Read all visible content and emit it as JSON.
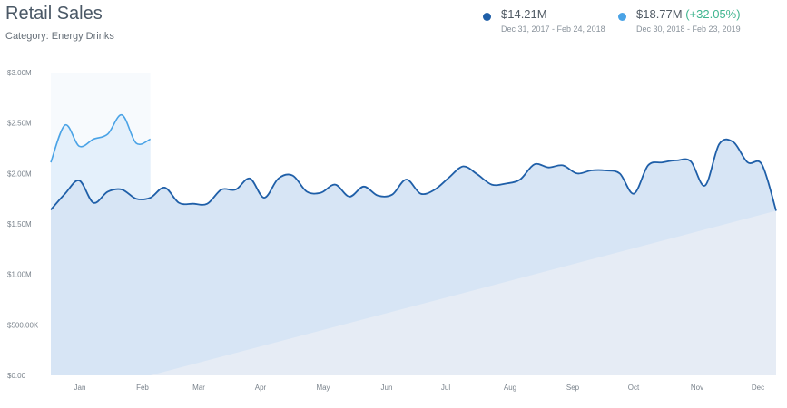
{
  "header": {
    "title": "Retail Sales",
    "subtitle": "Category: Energy Drinks"
  },
  "legend": [
    {
      "value": "$14.21M",
      "change": "",
      "range": "Dec 31, 2017 - Feb 24, 2018",
      "color": "#1f5fa8"
    },
    {
      "value": "$18.77M",
      "change": "(+32.05%)",
      "range": "Dec 30, 2018 - Feb 23, 2019",
      "color": "#4aa3e6"
    }
  ],
  "colors": {
    "current": "#1f5fa8",
    "highlight": "#4aa3e6",
    "change_positive": "#3fb58f"
  },
  "chart_data": {
    "type": "area",
    "ylim": [
      0,
      3000000
    ],
    "y_ticks": [
      {
        "value": 0,
        "label": "$0.00"
      },
      {
        "value": 500000,
        "label": "$500.00K"
      },
      {
        "value": 1000000,
        "label": "$1.00M"
      },
      {
        "value": 1500000,
        "label": "$1.50M"
      },
      {
        "value": 2000000,
        "label": "$2.00M"
      },
      {
        "value": 2500000,
        "label": "$2.50M"
      },
      {
        "value": 3000000,
        "label": "$3.00M"
      }
    ],
    "x_ticks": [
      "Jan",
      "Feb",
      "Mar",
      "Apr",
      "May",
      "Jun",
      "Jul",
      "Aug",
      "Sep",
      "Oct",
      "Nov",
      "Dec"
    ],
    "grid": false,
    "series": [
      {
        "values": [
          1640000,
          1800000,
          1930000,
          1710000,
          1820000,
          1840000,
          1750000,
          1760000,
          1860000,
          1710000,
          1700000,
          1700000,
          1840000,
          1840000,
          1950000,
          1760000,
          1950000,
          1980000,
          1820000,
          1810000,
          1890000,
          1770000,
          1870000,
          1780000,
          1790000,
          1940000,
          1800000,
          1840000,
          1960000,
          2070000,
          1990000,
          1890000,
          1900000,
          1940000,
          2090000,
          2060000,
          2080000,
          2000000,
          2030000,
          2030000,
          2000000,
          1800000,
          2080000,
          2110000,
          2130000,
          2120000,
          1880000,
          2290000,
          2310000,
          2110000,
          2090000,
          1630000
        ]
      },
      {
        "values": [
          2110000,
          2480000,
          2270000,
          2340000,
          2390000,
          2580000,
          2300000,
          2340000
        ]
      }
    ]
  }
}
